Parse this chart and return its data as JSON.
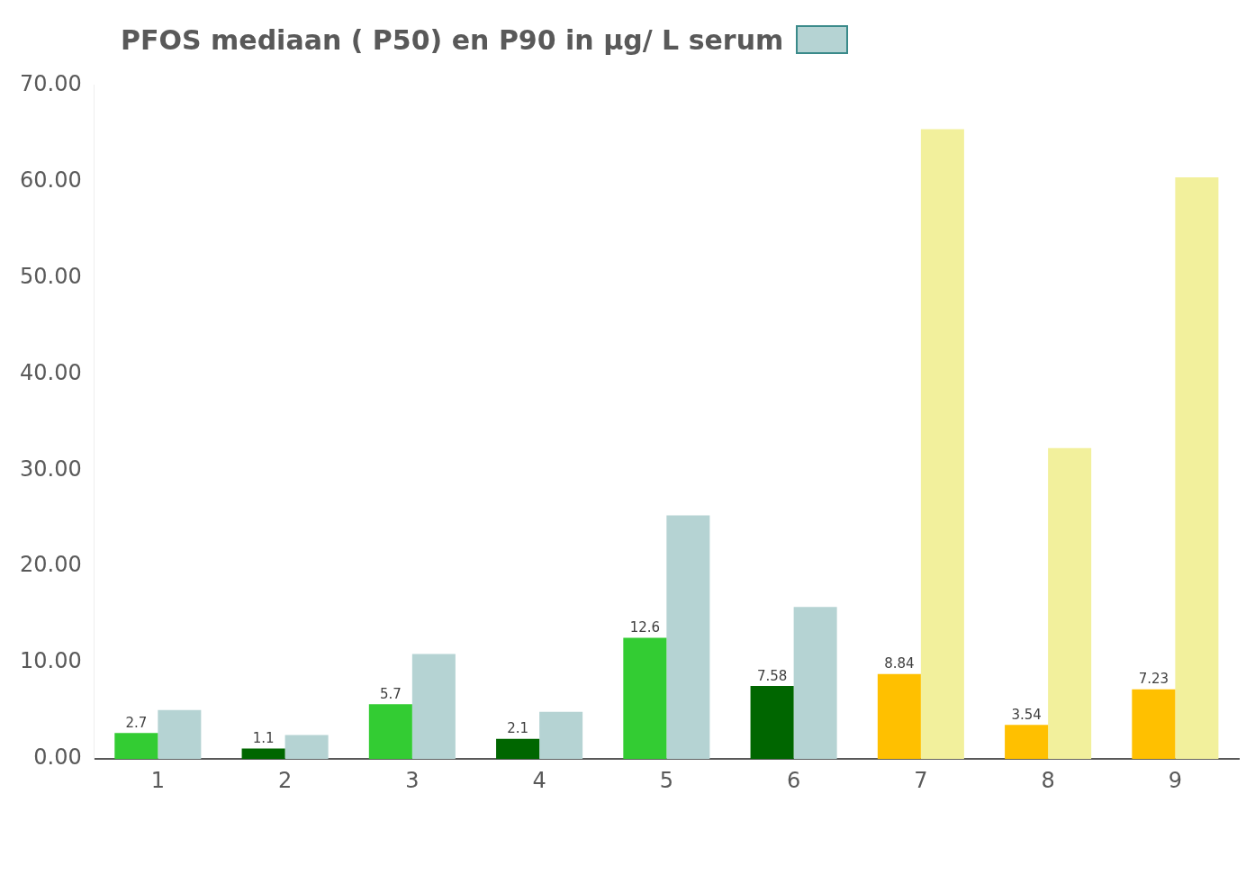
{
  "chart_data": {
    "type": "bar",
    "title": "PFOS mediaan ( P50) en P90 in µg/ L serum",
    "categories": [
      "1",
      "2",
      "3",
      "4",
      "5",
      "6",
      "7",
      "8",
      "9"
    ],
    "series": [
      {
        "colors": [
          "#33cc33",
          "#006600",
          "#33cc33",
          "#006600",
          "#33cc33",
          "#006600",
          "#ffc000",
          "#ffc000",
          "#ffc000"
        ],
        "values": [
          2.7,
          1.1,
          5.7,
          2.1,
          12.6,
          7.58,
          8.84,
          3.54,
          7.23
        ],
        "value_labels": [
          "2.7",
          "1.1",
          "5.7",
          "2.1",
          "12.6",
          "7.58",
          "8.84",
          "3.54",
          "7.23"
        ]
      },
      {
        "colors": [
          "#b5d3d3",
          "#b5d3d3",
          "#b5d3d3",
          "#b5d3d3",
          "#b5d3d3",
          "#b5d3d3",
          "#f2f09c",
          "#f2f09c",
          "#f2f09c"
        ],
        "values": [
          5.1,
          2.5,
          10.9,
          4.9,
          25.3,
          15.8,
          65.4,
          32.3,
          60.4
        ]
      }
    ],
    "ylim": [
      0,
      70
    ],
    "yticks": [
      {
        "value": 0,
        "label": "0.00"
      },
      {
        "value": 10,
        "label": "10.00"
      },
      {
        "value": 20,
        "label": "20.00"
      },
      {
        "value": 30,
        "label": "30.00"
      },
      {
        "value": 40,
        "label": "40.00"
      },
      {
        "value": 50,
        "label": "50.00"
      },
      {
        "value": 60,
        "label": "60.00"
      },
      {
        "value": 70,
        "label": "70.00"
      }
    ],
    "grid": false,
    "legend": false
  }
}
